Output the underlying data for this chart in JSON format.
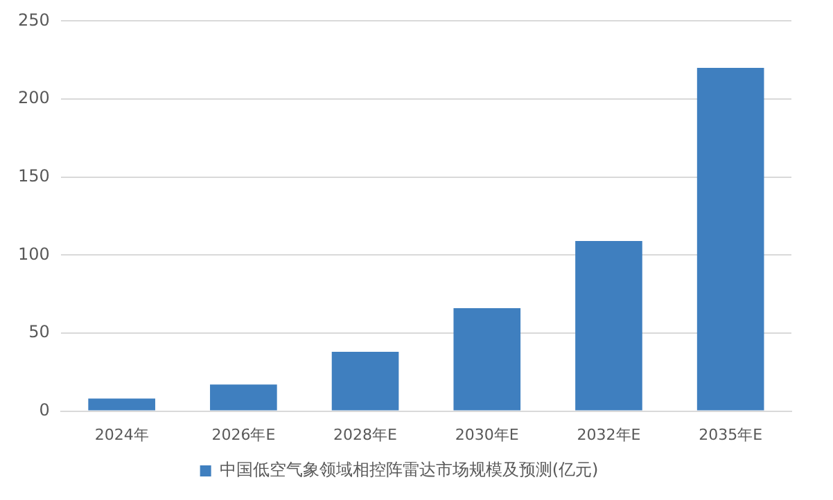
{
  "chart_data": {
    "type": "bar",
    "categories": [
      "2024年",
      "2026年E",
      "2028年E",
      "2030年E",
      "2032年E",
      "2035年E"
    ],
    "series": [
      {
        "name": "中国低空气象领域相控阵雷达市场规模及预测(亿元)",
        "color": "#3f7fbf",
        "values": [
          8,
          17,
          38,
          66,
          109,
          220
        ]
      }
    ],
    "ylim": [
      0,
      250
    ],
    "yticks": [
      0,
      50,
      100,
      150,
      200,
      250
    ],
    "grid": "y",
    "legend": "bottom"
  }
}
